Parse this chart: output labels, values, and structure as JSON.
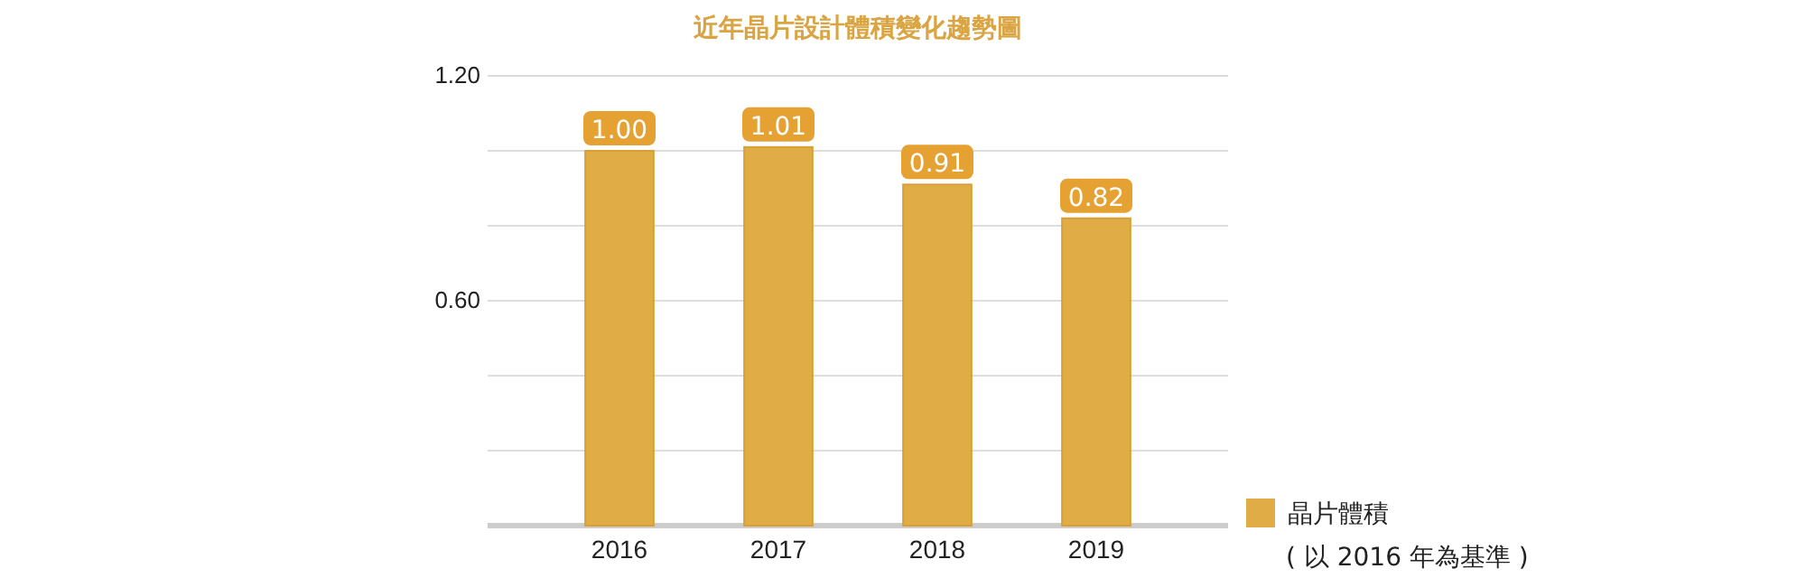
{
  "chart_data": {
    "type": "bar",
    "title": "近年晶片設計體積變化趨勢圖",
    "categories": [
      "2016",
      "2017",
      "2018",
      "2019"
    ],
    "series": [
      {
        "name": "晶片體積",
        "color": "#e0ac45",
        "values": [
          1.0,
          1.01,
          0.91,
          0.82
        ],
        "value_labels": [
          "1.00",
          "1.01",
          "0.91",
          "0.82"
        ]
      }
    ],
    "ylim": [
      0,
      1.2
    ],
    "yticks": [
      {
        "value": 0,
        "label": null
      },
      {
        "value": 0.2,
        "label": null
      },
      {
        "value": 0.4,
        "label": null
      },
      {
        "value": 0.6,
        "label": "0.60"
      },
      {
        "value": 0.8,
        "label": null
      },
      {
        "value": 1.0,
        "label": null
      },
      {
        "value": 1.2,
        "label": "1.20"
      }
    ],
    "grid": "y",
    "legend": "bottom right",
    "annotations": [
      "( 以 2016 年為基準 )"
    ]
  }
}
